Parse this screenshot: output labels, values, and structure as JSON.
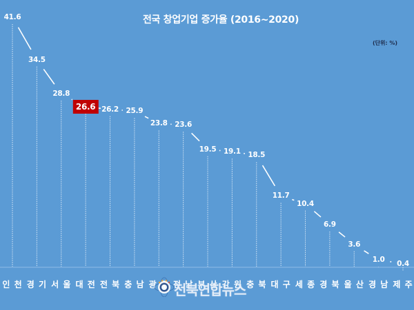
{
  "chart": {
    "title": "전국 창업기업 증가율 (2016~2020)",
    "unit": "(단위: %)",
    "background_color": "#5b9bd5",
    "highlight_color": "#c00000",
    "highlight_index": 3
  },
  "watermark": {
    "text": "전북연합뉴스"
  },
  "chart_data": {
    "type": "line",
    "title": "전국 창업기업 증가율 (2016~2020)",
    "unit": "%",
    "xlabel": "",
    "ylabel": "",
    "categories": [
      "인천",
      "경기",
      "서울",
      "대전",
      "전북",
      "충남",
      "광주",
      "전남",
      "부산",
      "강원",
      "충북",
      "대구",
      "세종",
      "경북",
      "울산",
      "경남",
      "제주"
    ],
    "values": [
      41.6,
      34.5,
      28.8,
      26.6,
      26.2,
      25.9,
      23.8,
      23.6,
      19.5,
      19.1,
      18.5,
      11.7,
      10.4,
      6.9,
      3.6,
      1.0,
      0.4
    ],
    "value_labels": [
      "41.6",
      "34.5",
      "28.8",
      "26.6",
      "26.2",
      "25.9",
      "23.8",
      "23.6",
      "19.5",
      "19.1",
      "18.5",
      "11.7",
      "10.4",
      "6.9",
      "3.6",
      "1.0",
      "0.4"
    ],
    "highlighted_category": "대전",
    "ylim": [
      0,
      42
    ],
    "grid": false,
    "drop_lines": true,
    "legend": "none"
  }
}
